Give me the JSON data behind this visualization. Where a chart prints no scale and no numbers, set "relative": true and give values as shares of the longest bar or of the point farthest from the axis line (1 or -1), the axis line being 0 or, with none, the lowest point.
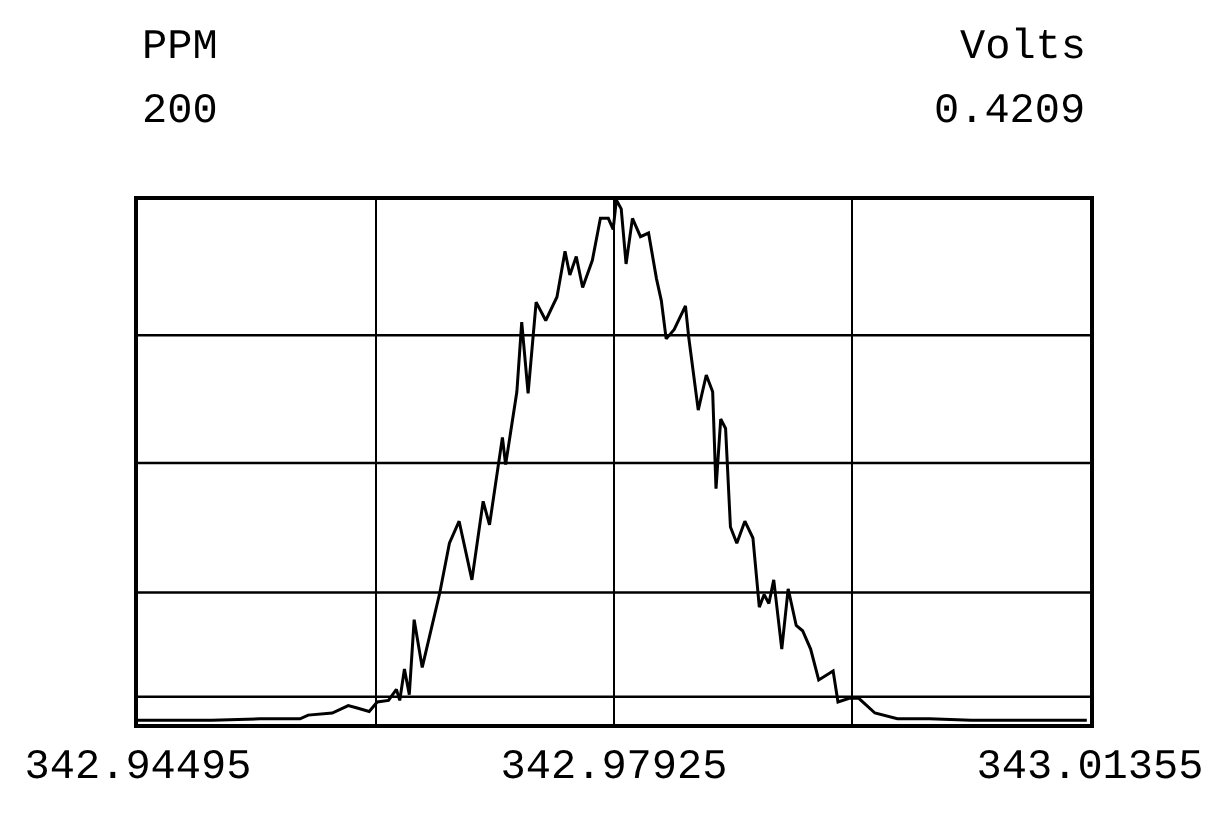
{
  "chart_data": {
    "type": "line",
    "relative": true,
    "ylabel": "PPM",
    "y2label": "Volts",
    "annotations": [
      "200",
      "0.4209"
    ],
    "xlim": [
      342.94495,
      343.01355
    ],
    "xticks": [
      342.94495,
      {
        "value": 342.9621,
        "label": null
      },
      342.97925,
      {
        "value": 342.9964,
        "label": null
      },
      343.01355
    ],
    "grid": "x",
    "ref_lines": [
      {
        "axis": "y",
        "value": 0.742,
        "label": null
      },
      {
        "axis": "y",
        "value": 0.498,
        "label": null
      },
      {
        "axis": "y",
        "value": 0.251,
        "label": null
      },
      {
        "axis": "y",
        "value": 0.052,
        "label": null
      }
    ],
    "x": [
      342.94495,
      342.95027,
      342.95374,
      342.95663,
      342.95721,
      342.95895,
      342.9601,
      342.96068,
      342.96161,
      342.96219,
      342.963,
      342.96357,
      342.96381,
      342.96415,
      342.9645,
      342.96485,
      342.96543,
      342.9667,
      342.96739,
      342.96809,
      342.96901,
      342.96982,
      342.97028,
      342.97121,
      342.97144,
      342.97225,
      342.9726,
      342.97306,
      342.97364,
      342.97433,
      342.97514,
      342.97572,
      342.97607,
      342.97653,
      342.97699,
      342.97769,
      342.97827,
      342.97884,
      342.97919,
      342.97942,
      342.97977,
      342.98012,
      342.98058,
      342.98116,
      342.98174,
      342.98231,
      342.98266,
      342.98301,
      342.98359,
      342.9844,
      342.98463,
      342.98532,
      342.9859,
      342.98636,
      342.9866,
      342.98694,
      342.98729,
      342.98764,
      342.9881,
      342.98868,
      342.98926,
      342.98972,
      342.99007,
      342.99041,
      342.99076,
      342.99134,
      342.9918,
      342.99238,
      342.99284,
      342.99342,
      342.994,
      342.99504,
      342.99539,
      342.9962,
      342.99689,
      342.99805,
      342.99967,
      343.00198,
      343.00499,
      343.00892,
      343.01332
    ],
    "series": [
      {
        "color": "#000000",
        "values": [
          0.007,
          0.007,
          0.01,
          0.01,
          0.017,
          0.021,
          0.035,
          0.031,
          0.024,
          0.042,
          0.045,
          0.066,
          0.045,
          0.105,
          0.056,
          0.199,
          0.108,
          0.251,
          0.345,
          0.387,
          0.275,
          0.425,
          0.38,
          0.547,
          0.495,
          0.634,
          0.767,
          0.631,
          0.805,
          0.77,
          0.815,
          0.902,
          0.857,
          0.892,
          0.833,
          0.885,
          0.965,
          0.965,
          0.944,
          1.0,
          0.983,
          0.878,
          0.965,
          0.93,
          0.937,
          0.85,
          0.808,
          0.735,
          0.753,
          0.798,
          0.739,
          0.599,
          0.666,
          0.634,
          0.449,
          0.582,
          0.564,
          0.376,
          0.345,
          0.387,
          0.355,
          0.223,
          0.247,
          0.23,
          0.275,
          0.143,
          0.258,
          0.188,
          0.178,
          0.143,
          0.084,
          0.101,
          0.042,
          0.049,
          0.049,
          0.021,
          0.01,
          0.01,
          0.007,
          0.007,
          0.007
        ]
      }
    ]
  }
}
